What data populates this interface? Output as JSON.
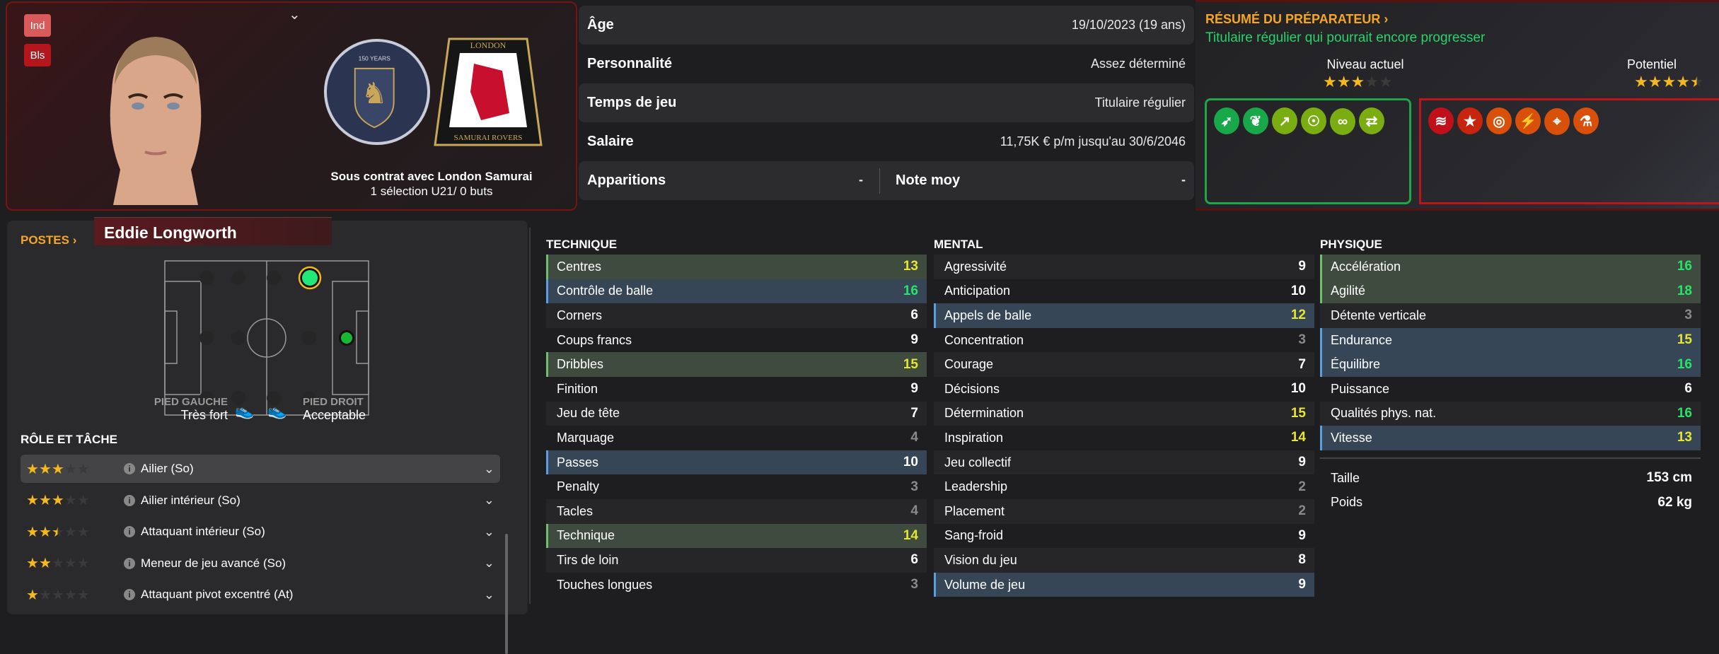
{
  "header": {
    "badges": [
      "Ind",
      "Bls"
    ],
    "contract_line": "Sous contrat avec London Samurai",
    "international_line": "1 sélection U21/ 0 buts",
    "crest_national_text": "150 YEARS",
    "crest_club_text": [
      "LONDON",
      "SAMURAI ROVERS"
    ]
  },
  "info": [
    {
      "label": "Âge",
      "value": "19/10/2023 (19 ans)"
    },
    {
      "label": "Personnalité",
      "value": "Assez déterminé"
    },
    {
      "label": "Temps de jeu",
      "value": "Titulaire régulier"
    },
    {
      "label": "Salaire",
      "value": "11,75K € p/m jusqu'au 30/6/2046"
    }
  ],
  "apps": {
    "label": "Apparitions",
    "value": "-",
    "rating_label": "Note moy",
    "rating_value": "-"
  },
  "coach": {
    "title": "RÉSUMÉ DU PRÉPARATEUR",
    "summary": "Titulaire régulier qui pourrait encore progresser",
    "current_label": "Niveau actuel",
    "current_stars": 3,
    "potential_label": "Potentiel",
    "potential_stars": 4.5,
    "strength_icons": [
      "cat-leap-icon",
      "plant-book-icon",
      "growth-arrow-icon",
      "brain-head-icon",
      "chain-link-icon",
      "handshake-icon"
    ],
    "weakness_icons": [
      "spring-icon",
      "star-icon",
      "target-icon",
      "broken-bone-icon",
      "cone-target-icon",
      "flask-icon"
    ],
    "colors": {
      "strength_border": "#1fa64a",
      "weakness_border": "#c0141a",
      "accent": "#f6a623",
      "summary": "#27d36a"
    }
  },
  "player": {
    "name": "Eddie Longworth"
  },
  "positions": {
    "title": "POSTES",
    "left_foot_label": "PIED GAUCHE",
    "left_foot_value": "Très fort",
    "right_foot_label": "PIED DROIT",
    "right_foot_value": "Acceptable"
  },
  "roles": {
    "title": "RÔLE ET TÂCHE",
    "items": [
      {
        "name": "Ailier (So)",
        "stars": 3
      },
      {
        "name": "Ailier intérieur (So)",
        "stars": 3
      },
      {
        "name": "Attaquant intérieur (So)",
        "stars": 2.5
      },
      {
        "name": "Meneur de jeu avancé (So)",
        "stars": 2
      },
      {
        "name": "Attaquant pivot excentré (At)",
        "stars": 1
      }
    ]
  },
  "attributes": [
    {
      "title": "TECHNIQUE",
      "items": [
        {
          "name": "Centres",
          "value": 13,
          "hl": "g"
        },
        {
          "name": "Contrôle de balle",
          "value": 16,
          "hl": "b"
        },
        {
          "name": "Corners",
          "value": 6
        },
        {
          "name": "Coups francs",
          "value": 9
        },
        {
          "name": "Dribbles",
          "value": 15,
          "hl": "g"
        },
        {
          "name": "Finition",
          "value": 9
        },
        {
          "name": "Jeu de tête",
          "value": 7
        },
        {
          "name": "Marquage",
          "value": 4
        },
        {
          "name": "Passes",
          "value": 10,
          "hl": "b"
        },
        {
          "name": "Penalty",
          "value": 3
        },
        {
          "name": "Tacles",
          "value": 4
        },
        {
          "name": "Technique",
          "value": 14,
          "hl": "g"
        },
        {
          "name": "Tirs de loin",
          "value": 6
        },
        {
          "name": "Touches longues",
          "value": 3
        }
      ]
    },
    {
      "title": "MENTAL",
      "items": [
        {
          "name": "Agressivité",
          "value": 9
        },
        {
          "name": "Anticipation",
          "value": 10
        },
        {
          "name": "Appels de balle",
          "value": 12,
          "hl": "b"
        },
        {
          "name": "Concentration",
          "value": 3
        },
        {
          "name": "Courage",
          "value": 7
        },
        {
          "name": "Décisions",
          "value": 10
        },
        {
          "name": "Détermination",
          "value": 15
        },
        {
          "name": "Inspiration",
          "value": 14
        },
        {
          "name": "Jeu collectif",
          "value": 9
        },
        {
          "name": "Leadership",
          "value": 2
        },
        {
          "name": "Placement",
          "value": 2
        },
        {
          "name": "Sang-froid",
          "value": 9
        },
        {
          "name": "Vision du jeu",
          "value": 8
        },
        {
          "name": "Volume de jeu",
          "value": 9,
          "hl": "b"
        }
      ]
    },
    {
      "title": "PHYSIQUE",
      "items": [
        {
          "name": "Accélération",
          "value": 16,
          "hl": "g"
        },
        {
          "name": "Agilité",
          "value": 18,
          "hl": "g"
        },
        {
          "name": "Détente verticale",
          "value": 3
        },
        {
          "name": "Endurance",
          "value": 15,
          "hl": "b"
        },
        {
          "name": "Équilibre",
          "value": 16,
          "hl": "b"
        },
        {
          "name": "Puissance",
          "value": 6
        },
        {
          "name": "Qualités phys. nat.",
          "value": 16
        },
        {
          "name": "Vitesse",
          "value": 13,
          "hl": "b"
        }
      ]
    }
  ],
  "body": [
    {
      "label": "Taille",
      "value": "153 cm"
    },
    {
      "label": "Poids",
      "value": "62 kg"
    }
  ]
}
